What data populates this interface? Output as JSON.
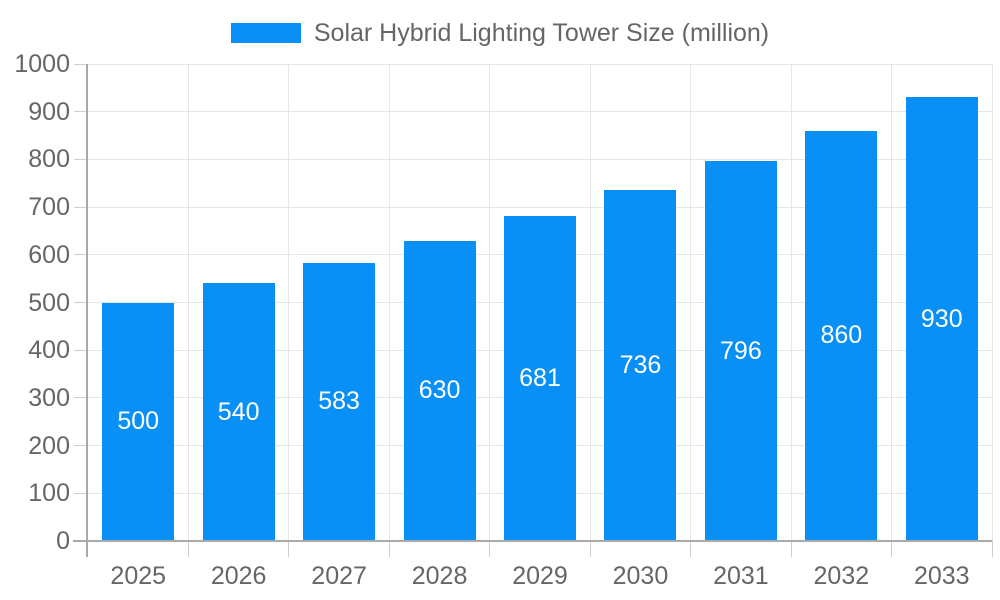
{
  "chart_data": {
    "type": "bar",
    "title": "Solar Hybrid Lighting Tower Size (million)",
    "legend": [
      {
        "label": "Solar Hybrid Lighting Tower Size (million)",
        "color": "#0990f6"
      }
    ],
    "legend_position": "top",
    "categories": [
      "2025",
      "2026",
      "2027",
      "2028",
      "2029",
      "2030",
      "2031",
      "2032",
      "2033"
    ],
    "values": [
      500,
      540,
      583,
      630,
      681,
      736,
      796,
      860,
      930
    ],
    "xlabel": "",
    "ylabel": "",
    "ylim": [
      0,
      1000
    ],
    "ytick_step": 100,
    "yticks": [
      0,
      100,
      200,
      300,
      400,
      500,
      600,
      700,
      800,
      900,
      1000
    ],
    "grid": true,
    "value_labels": "inside-center"
  },
  "colors": {
    "bar": "#0990f6",
    "grid": "#e6e6e6",
    "axis": "#a9a9a9",
    "tick": "#cccccc",
    "tick_label": "#666666",
    "value_label": "#ffffff",
    "legend_text": "#666666",
    "background": "#ffffff"
  }
}
